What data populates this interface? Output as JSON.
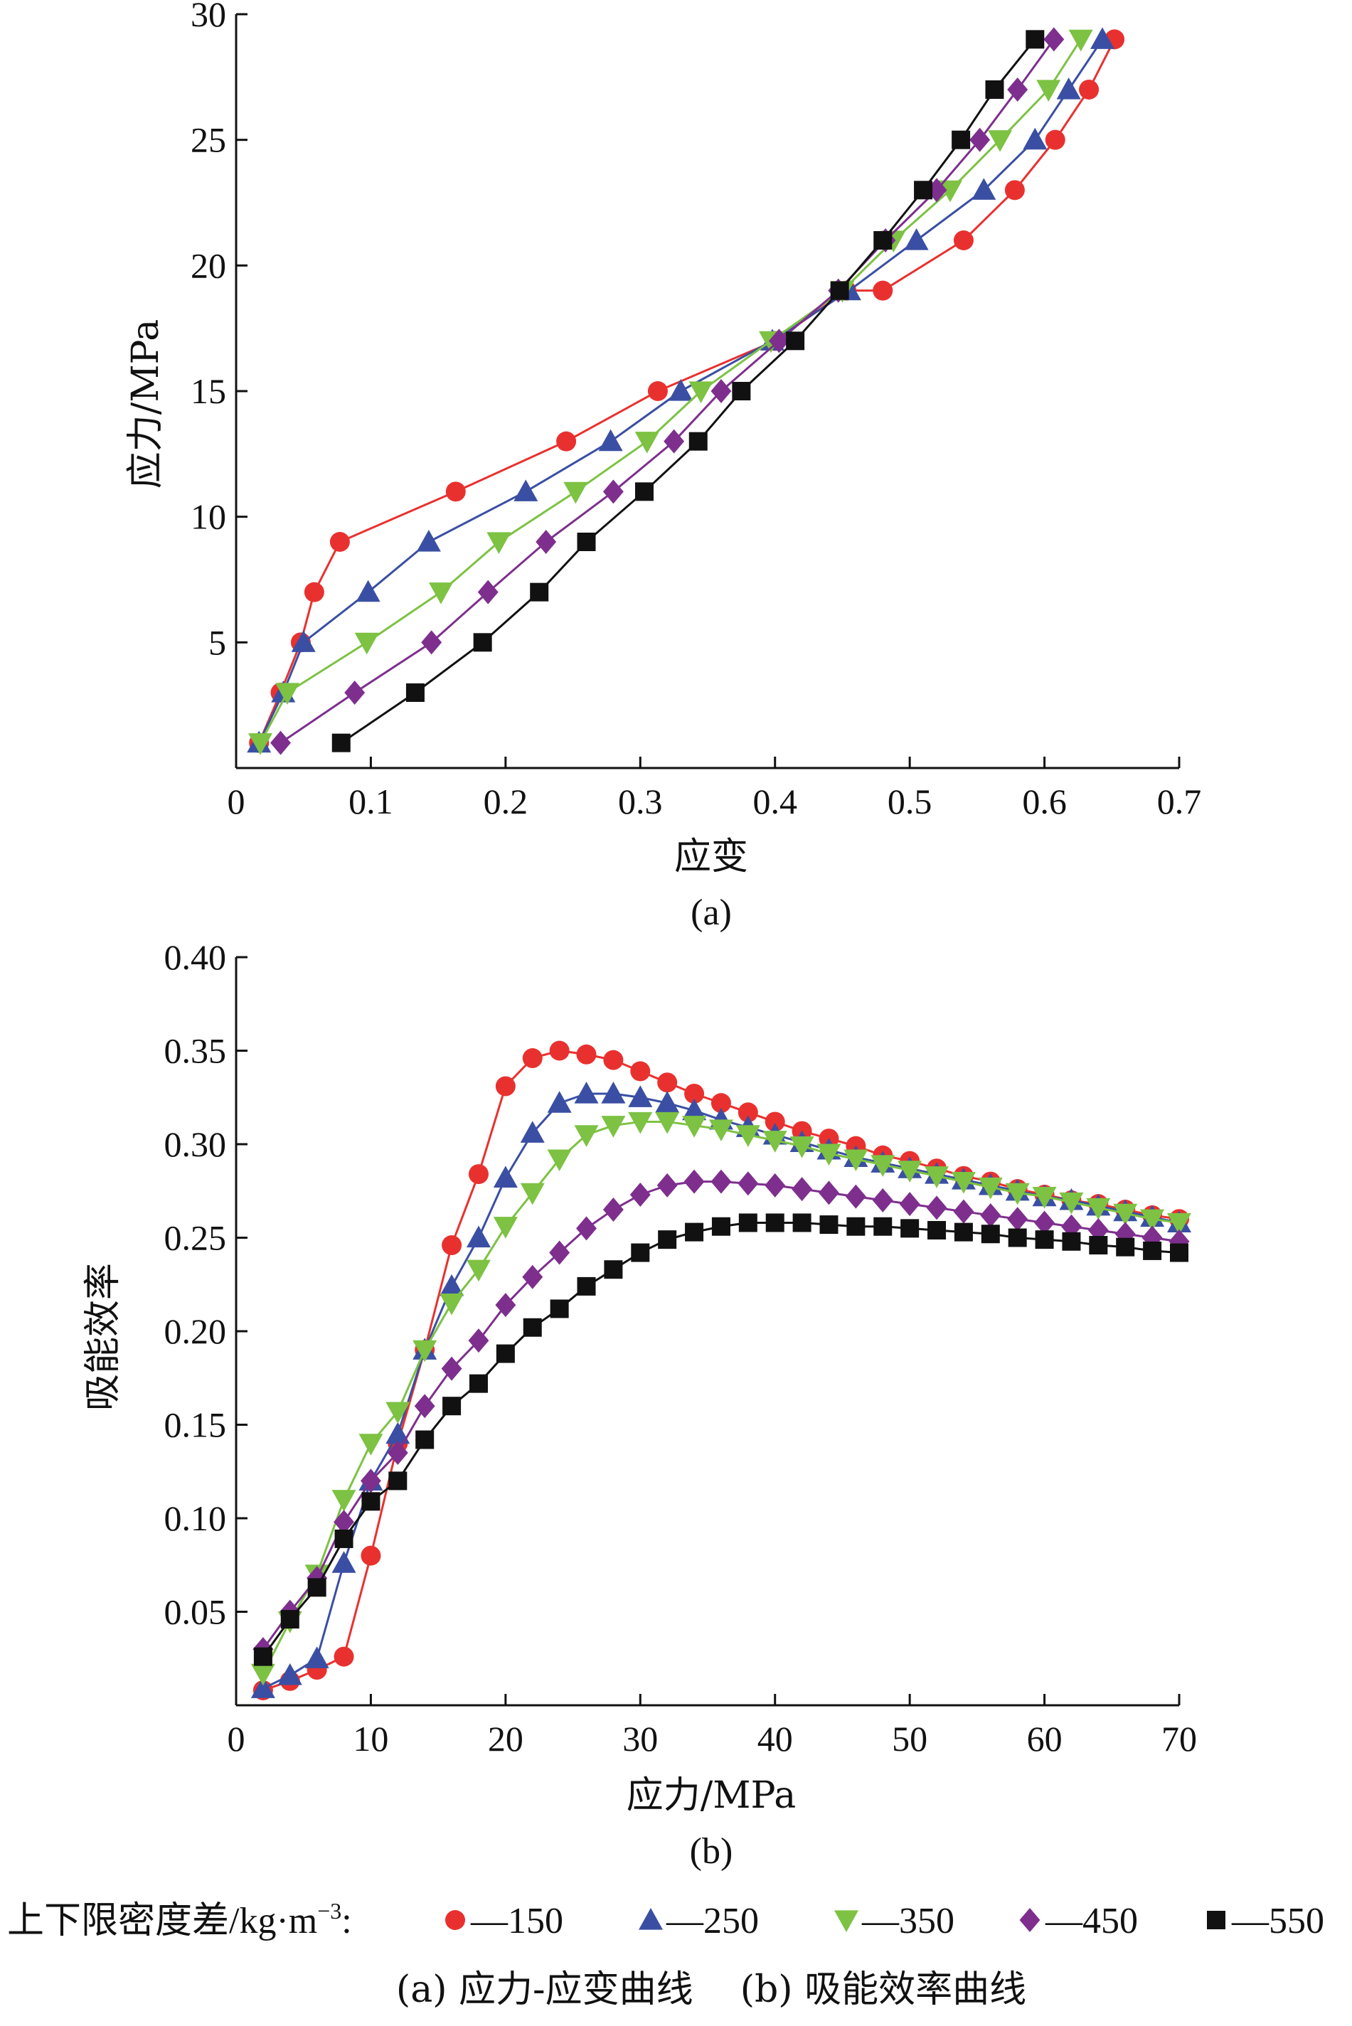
{
  "legend": {
    "prefix": "上下限密度差/kg·m",
    "sup": "−3",
    "suffix": ":",
    "items": [
      {
        "label": "—150",
        "color": "#e8312f",
        "marker": "circle"
      },
      {
        "label": "—250",
        "color": "#3a4fa3",
        "marker": "triangle-up"
      },
      {
        "label": "—350",
        "color": "#7dc243",
        "marker": "triangle-down"
      },
      {
        "label": "—450",
        "color": "#7e2f8e",
        "marker": "diamond"
      },
      {
        "label": "—550",
        "color": "#111111",
        "marker": "square"
      }
    ]
  },
  "caption": "(a) 应力-应变曲线    (b) 吸能效率曲线",
  "chart_data": [
    {
      "type": "line",
      "panel_label": "(a)",
      "xlabel": "应变",
      "ylabel": "应力/MPa",
      "xlim": [
        0,
        0.7
      ],
      "ylim": [
        0,
        30
      ],
      "xticks": [
        "0",
        "0.1",
        "0.2",
        "0.3",
        "0.4",
        "0.5",
        "0.6",
        "0.7"
      ],
      "xtick_values": [
        0,
        0.1,
        0.2,
        0.3,
        0.4,
        0.5,
        0.6,
        0.7
      ],
      "yticks": [
        "5",
        "10",
        "15",
        "20",
        "25",
        "30"
      ],
      "ytick_values": [
        5,
        10,
        15,
        20,
        25,
        30
      ],
      "grid": false,
      "series": [
        {
          "name": "150",
          "color": "#e8312f",
          "marker": "circle",
          "x": [
            0.017,
            0.033,
            0.048,
            0.058,
            0.077,
            0.163,
            0.245,
            0.313,
            0.4,
            0.453,
            0.48,
            0.54,
            0.578,
            0.608,
            0.633,
            0.652
          ],
          "y": [
            1,
            3,
            5,
            7,
            9,
            11,
            13,
            15,
            17,
            19,
            19,
            21,
            23,
            25,
            27,
            29
          ]
        },
        {
          "name": "250",
          "color": "#3a4fa3",
          "marker": "triangle-up",
          "x": [
            0.017,
            0.035,
            0.05,
            0.098,
            0.143,
            0.215,
            0.278,
            0.33,
            0.398,
            0.455,
            0.505,
            0.555,
            0.593,
            0.618,
            0.643
          ],
          "y": [
            1,
            3,
            5,
            7,
            9,
            11,
            13,
            15,
            17,
            19,
            21,
            23,
            25,
            27,
            29
          ]
        },
        {
          "name": "350",
          "color": "#7dc243",
          "marker": "triangle-down",
          "x": [
            0.018,
            0.038,
            0.097,
            0.152,
            0.195,
            0.252,
            0.305,
            0.345,
            0.397,
            0.45,
            0.488,
            0.53,
            0.567,
            0.603,
            0.627
          ],
          "y": [
            1,
            3,
            5,
            7,
            9,
            11,
            13,
            15,
            17,
            19,
            21,
            23,
            25,
            27,
            29
          ]
        },
        {
          "name": "450",
          "color": "#7e2f8e",
          "marker": "diamond",
          "x": [
            0.033,
            0.088,
            0.145,
            0.187,
            0.23,
            0.28,
            0.325,
            0.36,
            0.403,
            0.447,
            0.482,
            0.52,
            0.552,
            0.58,
            0.607
          ],
          "y": [
            1,
            3,
            5,
            7,
            9,
            11,
            13,
            15,
            17,
            19,
            21,
            23,
            25,
            27,
            29
          ]
        },
        {
          "name": "550",
          "color": "#111111",
          "marker": "square",
          "x": [
            0.078,
            0.133,
            0.183,
            0.225,
            0.26,
            0.303,
            0.343,
            0.375,
            0.415,
            0.448,
            0.48,
            0.51,
            0.538,
            0.563,
            0.593
          ],
          "y": [
            1,
            3,
            5,
            7,
            9,
            11,
            13,
            15,
            17,
            19,
            21,
            23,
            25,
            27,
            29
          ]
        }
      ]
    },
    {
      "type": "line",
      "panel_label": "(b)",
      "xlabel": "应力/MPa",
      "ylabel": "吸能效率",
      "xlim": [
        0,
        70
      ],
      "ylim": [
        0,
        0.4
      ],
      "xticks": [
        "0",
        "10",
        "20",
        "30",
        "40",
        "50",
        "60",
        "70"
      ],
      "xtick_values": [
        0,
        10,
        20,
        30,
        40,
        50,
        60,
        70
      ],
      "yticks": [
        "0.05",
        "0.10",
        "0.15",
        "0.20",
        "0.25",
        "0.30",
        "0.35",
        "0.40"
      ],
      "ytick_values": [
        0.05,
        0.1,
        0.15,
        0.2,
        0.25,
        0.3,
        0.35,
        0.4
      ],
      "grid": false,
      "x": [
        2,
        4,
        6,
        8,
        10,
        12,
        14,
        16,
        18,
        20,
        22,
        24,
        26,
        28,
        30,
        32,
        34,
        36,
        38,
        40,
        42,
        44,
        46,
        48,
        50,
        52,
        54,
        56,
        58,
        60,
        62,
        64,
        66,
        68,
        70
      ],
      "series": [
        {
          "name": "150",
          "color": "#e8312f",
          "marker": "circle",
          "values": [
            0.008,
            0.013,
            0.019,
            0.026,
            0.08,
            0.14,
            0.19,
            0.246,
            0.284,
            0.331,
            0.346,
            0.35,
            0.348,
            0.345,
            0.339,
            0.333,
            0.327,
            0.322,
            0.317,
            0.312,
            0.307,
            0.303,
            0.299,
            0.294,
            0.291,
            0.287,
            0.283,
            0.28,
            0.276,
            0.273,
            0.27,
            0.268,
            0.265,
            0.262,
            0.26
          ]
        },
        {
          "name": "250",
          "color": "#3a4fa3",
          "marker": "triangle-up",
          "values": [
            0.009,
            0.016,
            0.025,
            0.076,
            0.12,
            0.145,
            0.19,
            0.224,
            0.25,
            0.282,
            0.306,
            0.322,
            0.327,
            0.327,
            0.325,
            0.322,
            0.318,
            0.313,
            0.309,
            0.305,
            0.301,
            0.297,
            0.293,
            0.29,
            0.287,
            0.284,
            0.281,
            0.278,
            0.275,
            0.272,
            0.27,
            0.267,
            0.264,
            0.261,
            0.258
          ]
        },
        {
          "name": "350",
          "color": "#7dc243",
          "marker": "triangle-down",
          "values": [
            0.017,
            0.045,
            0.07,
            0.11,
            0.14,
            0.157,
            0.19,
            0.215,
            0.233,
            0.256,
            0.274,
            0.292,
            0.305,
            0.31,
            0.312,
            0.312,
            0.31,
            0.308,
            0.305,
            0.302,
            0.299,
            0.295,
            0.292,
            0.289,
            0.286,
            0.283,
            0.28,
            0.277,
            0.274,
            0.272,
            0.269,
            0.266,
            0.263,
            0.26,
            0.258
          ]
        },
        {
          "name": "450",
          "color": "#7e2f8e",
          "marker": "diamond",
          "values": [
            0.03,
            0.05,
            0.068,
            0.098,
            0.12,
            0.135,
            0.16,
            0.18,
            0.195,
            0.214,
            0.229,
            0.242,
            0.255,
            0.265,
            0.273,
            0.278,
            0.28,
            0.28,
            0.279,
            0.278,
            0.276,
            0.274,
            0.272,
            0.27,
            0.268,
            0.266,
            0.264,
            0.262,
            0.26,
            0.258,
            0.256,
            0.254,
            0.252,
            0.25,
            0.248
          ]
        },
        {
          "name": "550",
          "color": "#111111",
          "marker": "square",
          "values": [
            0.026,
            0.046,
            0.063,
            0.089,
            0.109,
            0.12,
            0.142,
            0.16,
            0.172,
            0.188,
            0.202,
            0.212,
            0.224,
            0.233,
            0.242,
            0.249,
            0.253,
            0.256,
            0.258,
            0.258,
            0.258,
            0.257,
            0.256,
            0.256,
            0.255,
            0.254,
            0.253,
            0.252,
            0.25,
            0.249,
            0.248,
            0.246,
            0.245,
            0.243,
            0.242
          ]
        }
      ]
    }
  ]
}
